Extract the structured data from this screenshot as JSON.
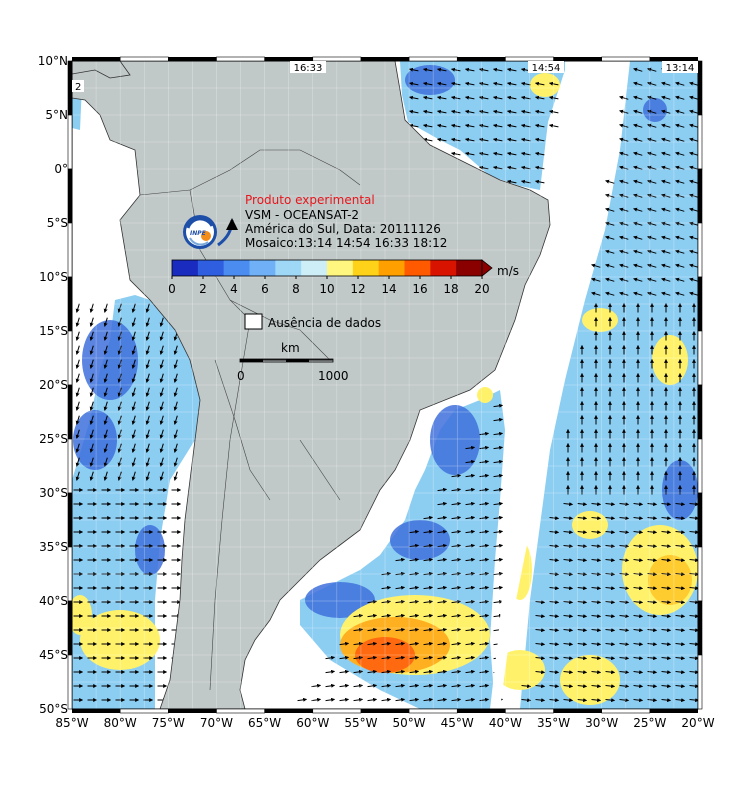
{
  "map": {
    "lon_ticks": [
      "85°W",
      "80°W",
      "75°W",
      "70°W",
      "65°W",
      "60°W",
      "55°W",
      "50°W",
      "45°W",
      "40°W",
      "35°W",
      "30°W",
      "25°W",
      "20°W"
    ],
    "lat_ticks": [
      "10°N",
      "5°N",
      "0°",
      "5°S",
      "10°S",
      "15°S",
      "20°S",
      "25°S",
      "30°S",
      "35°S",
      "40°S",
      "45°S",
      "50°S"
    ],
    "pass_times": [
      "16:33",
      "14:54",
      "13:14"
    ],
    "corner_mark": "2"
  },
  "legend": {
    "title": "Produto experimental",
    "line1": "VSM - OCEANSAT-2",
    "line2": "América do Sul, Data: 20111126",
    "line3": "Mosaico:13:14 14:54 16:33 18:12",
    "colorbar_ticks": [
      "0",
      "2",
      "4",
      "6",
      "8",
      "10",
      "12",
      "14",
      "16",
      "18",
      "20"
    ],
    "colorbar_unit": "m/s",
    "no_data_label": "Ausência de dados",
    "scale_unit": "km",
    "scale_start": "0",
    "scale_end": "1000"
  },
  "colors": {
    "land": "#c0c8c8",
    "ocean_nodata": "#ffffff",
    "frame": "#000000",
    "title_red": "#e8161c",
    "colorbar": [
      "#1a2bbf",
      "#2f5fe0",
      "#4a8cf0",
      "#6fb0f7",
      "#9fd8f7",
      "#cdeef7",
      "#fff680",
      "#ffd21a",
      "#ffa000",
      "#ff5a00",
      "#d81400",
      "#8a0000"
    ]
  }
}
